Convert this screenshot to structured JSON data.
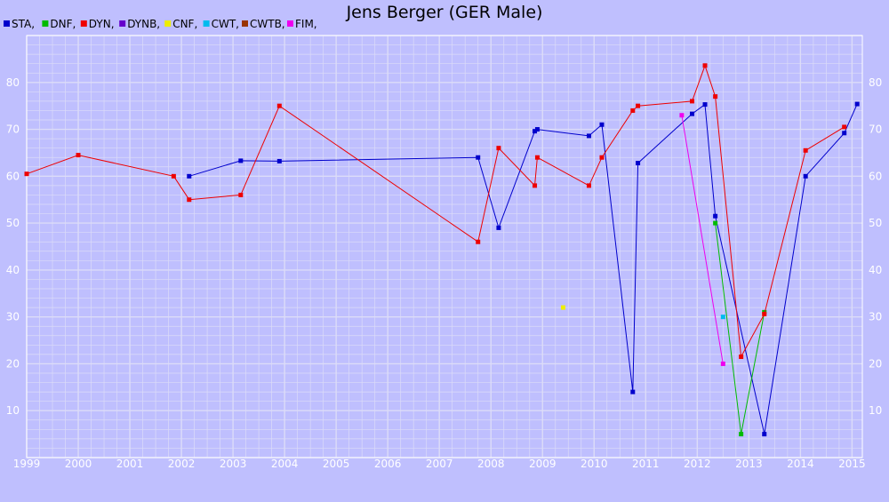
{
  "chart_data": {
    "type": "line",
    "title": "Jens Berger (GER Male)",
    "xlim": [
      1999.0,
      2015.2
    ],
    "ylim": [
      0,
      90
    ],
    "x_ticks": [
      "1999",
      "2000",
      "2001",
      "2002",
      "2003",
      "2004",
      "2005",
      "2006",
      "2007",
      "2008",
      "2009",
      "2010",
      "2011",
      "2012",
      "2013",
      "2014",
      "2015"
    ],
    "y_ticks": [
      "10",
      "20",
      "30",
      "40",
      "50",
      "60",
      "70",
      "80"
    ],
    "grid": true,
    "legend_position": "top-left",
    "legend": [
      {
        "label": "STA,",
        "color": "#0000cc"
      },
      {
        "label": "DNF,",
        "color": "#00bb00"
      },
      {
        "label": "DYN,",
        "color": "#ee0000"
      },
      {
        "label": "DYNB,",
        "color": "#6600cc"
      },
      {
        "label": "CNF,",
        "color": "#eeee00"
      },
      {
        "label": "CWT,",
        "color": "#00bbee"
      },
      {
        "label": "CWTB,",
        "color": "#993300"
      },
      {
        "label": "FIM,",
        "color": "#ee00ee"
      }
    ],
    "series": [
      {
        "name": "STA",
        "color": "#0000cc",
        "points": [
          [
            2002.15,
            60.0
          ],
          [
            2003.15,
            63.3
          ],
          [
            2003.9,
            63.2
          ],
          [
            2007.75,
            64.0
          ],
          [
            2008.15,
            49.0
          ],
          [
            2008.85,
            69.6
          ],
          [
            2008.9,
            70.0
          ],
          [
            2009.9,
            68.6
          ],
          [
            2010.15,
            71.0
          ],
          [
            2010.75,
            14.0
          ],
          [
            2010.85,
            62.8
          ],
          [
            2011.9,
            73.3
          ],
          [
            2012.15,
            75.3
          ],
          [
            2012.35,
            51.5
          ],
          [
            2013.3,
            5.0
          ],
          [
            2014.1,
            60.0
          ],
          [
            2014.85,
            69.2
          ],
          [
            2015.1,
            75.4
          ]
        ]
      },
      {
        "name": "DNF",
        "color": "#00bb00",
        "points": [
          [
            2012.35,
            50.0
          ],
          [
            2012.85,
            5.0
          ],
          [
            2013.3,
            31.0
          ]
        ]
      },
      {
        "name": "DYN",
        "color": "#ee0000",
        "points": [
          [
            1999.0,
            60.5
          ],
          [
            2000.0,
            64.5
          ],
          [
            2001.85,
            60.0
          ],
          [
            2002.15,
            55.0
          ],
          [
            2003.15,
            56.0
          ],
          [
            2003.9,
            75.0
          ],
          [
            2007.75,
            46.0
          ],
          [
            2008.15,
            66.0
          ],
          [
            2008.85,
            58.0
          ],
          [
            2008.9,
            64.0
          ],
          [
            2009.9,
            58.0
          ],
          [
            2010.15,
            64.0
          ],
          [
            2010.75,
            74.0
          ],
          [
            2010.85,
            75.0
          ],
          [
            2011.9,
            76.0
          ],
          [
            2012.15,
            83.6
          ],
          [
            2012.35,
            77.0
          ],
          [
            2012.85,
            21.5
          ],
          [
            2013.3,
            30.6
          ],
          [
            2014.1,
            65.5
          ],
          [
            2014.85,
            70.5
          ]
        ]
      },
      {
        "name": "CNF",
        "color": "#eeee00",
        "points": [
          [
            2009.4,
            32.0
          ]
        ]
      },
      {
        "name": "CWT",
        "color": "#00bbee",
        "points": [
          [
            2012.5,
            30.0
          ]
        ]
      },
      {
        "name": "FIM",
        "color": "#ee00ee",
        "points": [
          [
            2011.7,
            73.0
          ],
          [
            2012.5,
            20.0
          ]
        ]
      }
    ]
  }
}
